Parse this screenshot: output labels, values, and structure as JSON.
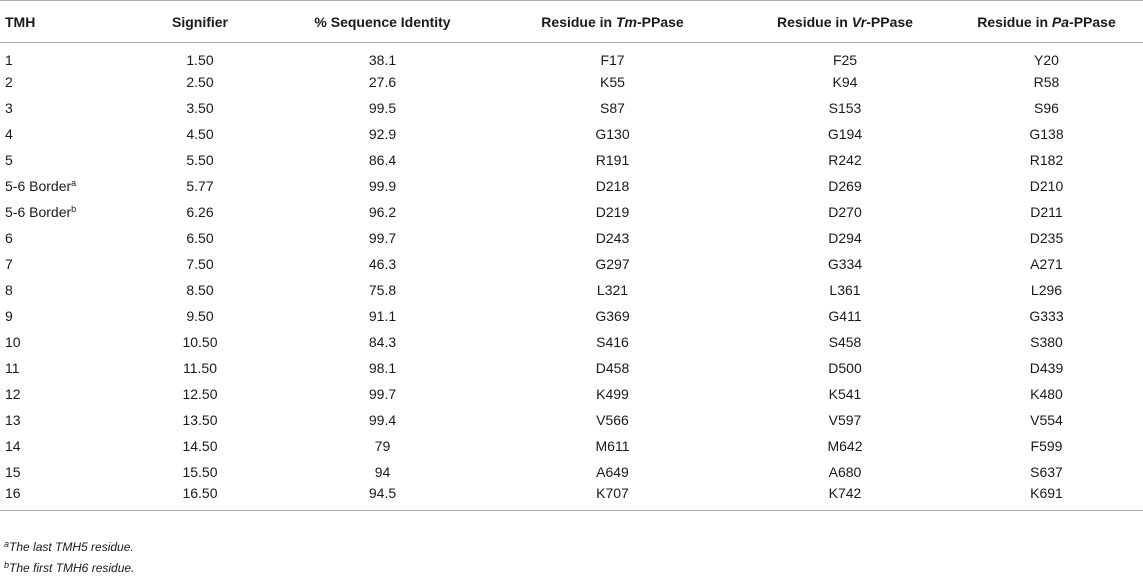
{
  "table": {
    "headers": [
      {
        "key": "tmh",
        "text": "TMH"
      },
      {
        "key": "signifier",
        "text": "Signifier"
      },
      {
        "key": "identity",
        "text": "% Sequence Identity"
      },
      {
        "key": "tm",
        "prefix": "Residue in ",
        "species": "Tm",
        "suffix": "-PPase"
      },
      {
        "key": "vr",
        "prefix": "Residue in ",
        "species": "Vr",
        "suffix": "-PPase"
      },
      {
        "key": "pa",
        "prefix": "Residue in ",
        "species": "Pa",
        "suffix": "-PPase"
      }
    ],
    "rows": [
      {
        "tmh": "1",
        "sup": "",
        "signifier": "1.50",
        "identity": "38.1",
        "tm": "F17",
        "vr": "F25",
        "pa": "Y20"
      },
      {
        "tmh": "2",
        "sup": "",
        "signifier": "2.50",
        "identity": "27.6",
        "tm": "K55",
        "vr": "K94",
        "pa": "R58"
      },
      {
        "tmh": "3",
        "sup": "",
        "signifier": "3.50",
        "identity": "99.5",
        "tm": "S87",
        "vr": "S153",
        "pa": "S96"
      },
      {
        "tmh": "4",
        "sup": "",
        "signifier": "4.50",
        "identity": "92.9",
        "tm": "G130",
        "vr": "G194",
        "pa": "G138"
      },
      {
        "tmh": "5",
        "sup": "",
        "signifier": "5.50",
        "identity": "86.4",
        "tm": "R191",
        "vr": "R242",
        "pa": "R182"
      },
      {
        "tmh": "5-6 Border",
        "sup": "a",
        "signifier": "5.77",
        "identity": "99.9",
        "tm": "D218",
        "vr": "D269",
        "pa": "D210"
      },
      {
        "tmh": "5-6 Border",
        "sup": "b",
        "signifier": "6.26",
        "identity": "96.2",
        "tm": "D219",
        "vr": "D270",
        "pa": "D211"
      },
      {
        "tmh": "6",
        "sup": "",
        "signifier": "6.50",
        "identity": "99.7",
        "tm": "D243",
        "vr": "D294",
        "pa": "D235"
      },
      {
        "tmh": "7",
        "sup": "",
        "signifier": "7.50",
        "identity": "46.3",
        "tm": "G297",
        "vr": "G334",
        "pa": "A271"
      },
      {
        "tmh": "8",
        "sup": "",
        "signifier": "8.50",
        "identity": "75.8",
        "tm": "L321",
        "vr": "L361",
        "pa": "L296"
      },
      {
        "tmh": "9",
        "sup": "",
        "signifier": "9.50",
        "identity": "91.1",
        "tm": "G369",
        "vr": "G411",
        "pa": "G333"
      },
      {
        "tmh": "10",
        "sup": "",
        "signifier": "10.50",
        "identity": "84.3",
        "tm": "S416",
        "vr": "S458",
        "pa": "S380"
      },
      {
        "tmh": "11",
        "sup": "",
        "signifier": "11.50",
        "identity": "98.1",
        "tm": "D458",
        "vr": "D500",
        "pa": "D439"
      },
      {
        "tmh": "12",
        "sup": "",
        "signifier": "12.50",
        "identity": "99.7",
        "tm": "K499",
        "vr": "K541",
        "pa": "K480"
      },
      {
        "tmh": "13",
        "sup": "",
        "signifier": "13.50",
        "identity": "99.4",
        "tm": "V566",
        "vr": "V597",
        "pa": "V554"
      },
      {
        "tmh": "14",
        "sup": "",
        "signifier": "14.50",
        "identity": "79",
        "tm": "M611",
        "vr": "M642",
        "pa": "F599"
      },
      {
        "tmh": "15",
        "sup": "",
        "signifier": "15.50",
        "identity": "94",
        "tm": "A649",
        "vr": "A680",
        "pa": "S637"
      },
      {
        "tmh": "16",
        "sup": "",
        "signifier": "16.50",
        "identity": "94.5",
        "tm": "K707",
        "vr": "K742",
        "pa": "K691"
      }
    ]
  },
  "footnotes": [
    {
      "mark": "a",
      "text": "The last TMH5 residue."
    },
    {
      "mark": "b",
      "text": "The first TMH6 residue."
    }
  ]
}
